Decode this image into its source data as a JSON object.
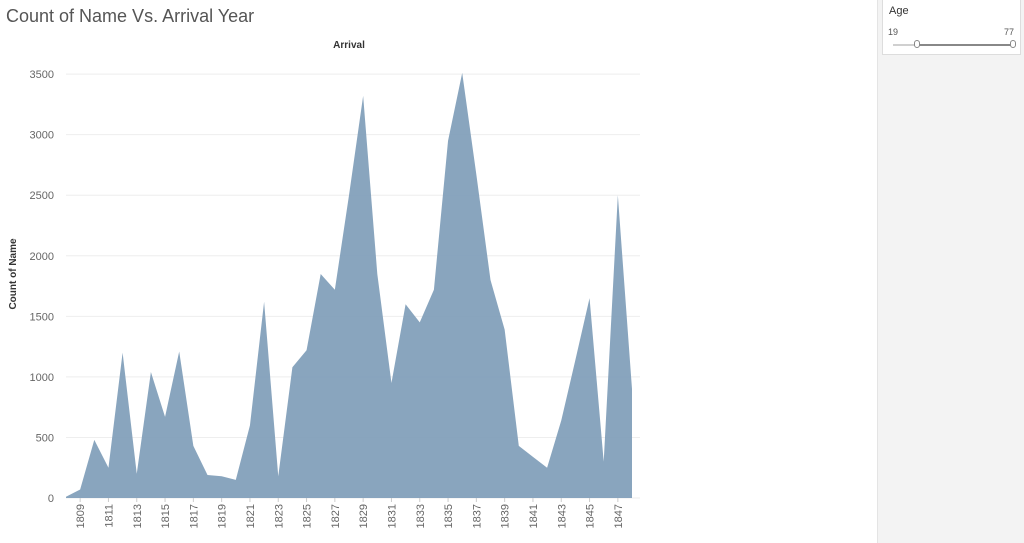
{
  "title": "Count of Name Vs. Arrival Year",
  "filter": {
    "label": "Age",
    "min_value": "19",
    "max_value": "77",
    "selected_min_fraction": 0.2,
    "selected_max_fraction": 1.0
  },
  "colors": {
    "area_fill": "#7f9db9",
    "background": "#ffffff",
    "panel": "#f3f3f3"
  },
  "chart_data": {
    "type": "area",
    "title": "Arrival",
    "xlabel": "",
    "ylabel": "Count of Name",
    "x": [
      1808,
      1809,
      1810,
      1811,
      1812,
      1813,
      1814,
      1815,
      1816,
      1817,
      1818,
      1819,
      1820,
      1821,
      1822,
      1823,
      1824,
      1825,
      1826,
      1827,
      1828,
      1829,
      1830,
      1831,
      1832,
      1833,
      1834,
      1835,
      1836,
      1837,
      1838,
      1839,
      1840,
      1841,
      1842,
      1843,
      1844,
      1845,
      1846,
      1847,
      1848
    ],
    "values": [
      10,
      70,
      480,
      250,
      1200,
      200,
      1040,
      670,
      1210,
      430,
      190,
      180,
      150,
      600,
      1620,
      180,
      1080,
      1220,
      1850,
      1720,
      2500,
      3320,
      1850,
      950,
      1600,
      1450,
      1720,
      2950,
      3510,
      2670,
      1800,
      1390,
      430,
      340,
      250,
      640,
      1140,
      1650,
      300,
      2500,
      900
    ],
    "x_tick_labels": [
      "1809",
      "1811",
      "1813",
      "1815",
      "1817",
      "1819",
      "1821",
      "1823",
      "1825",
      "1827",
      "1829",
      "1831",
      "1833",
      "1835",
      "1837",
      "1839",
      "1841",
      "1843",
      "1845",
      "1847"
    ],
    "y_ticks": [
      0,
      500,
      1000,
      1500,
      2000,
      2500,
      3000,
      3500
    ],
    "ylim": [
      0,
      3600
    ],
    "grid": true,
    "legend": "none"
  }
}
